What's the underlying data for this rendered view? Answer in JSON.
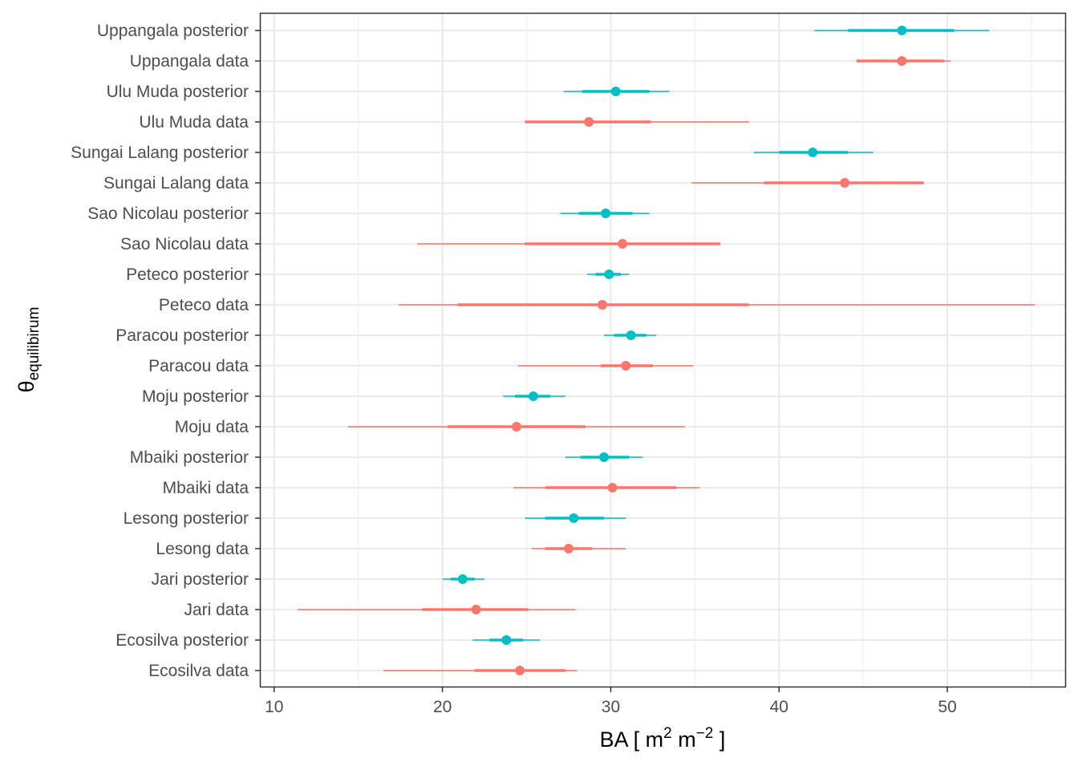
{
  "chart_data": {
    "type": "interval",
    "xlabel": {
      "base": "BA [ m",
      "exp1": "2",
      "mid": " m",
      "exp2": "−2",
      "end": " ]"
    },
    "ylabel": {
      "symbol": "θ",
      "subscript": "equilibirum"
    },
    "xlim": [
      9.2,
      57.0
    ],
    "xticks": [
      10,
      20,
      30,
      40,
      50
    ],
    "grid": true,
    "legend": "none",
    "colors": {
      "posterior": "#00BFC4",
      "data": "#F8766D"
    },
    "rows": [
      {
        "label": "Uppangala posterior",
        "type": "posterior",
        "point": 47.3,
        "inner": [
          44.1,
          50.4
        ],
        "outer": [
          42.1,
          52.5
        ]
      },
      {
        "label": "Uppangala data",
        "type": "data",
        "point": 47.3,
        "inner": [
          44.6,
          49.8
        ],
        "outer": [
          44.6,
          50.2
        ]
      },
      {
        "label": "Ulu Muda posterior",
        "type": "posterior",
        "point": 30.3,
        "inner": [
          28.3,
          32.3
        ],
        "outer": [
          27.2,
          33.5
        ]
      },
      {
        "label": "Ulu Muda data",
        "type": "data",
        "point": 28.7,
        "inner": [
          24.9,
          32.4
        ],
        "outer": [
          24.9,
          38.2
        ]
      },
      {
        "label": "Sungai Lalang posterior",
        "type": "posterior",
        "point": 42.0,
        "inner": [
          40.0,
          44.1
        ],
        "outer": [
          38.5,
          45.6
        ]
      },
      {
        "label": "Sungai Lalang data",
        "type": "data",
        "point": 43.9,
        "inner": [
          39.1,
          48.6
        ],
        "outer": [
          34.8,
          48.6
        ]
      },
      {
        "label": "Sao Nicolau posterior",
        "type": "posterior",
        "point": 29.7,
        "inner": [
          28.1,
          31.3
        ],
        "outer": [
          27.0,
          32.3
        ]
      },
      {
        "label": "Sao Nicolau data",
        "type": "data",
        "point": 30.7,
        "inner": [
          24.9,
          36.5
        ],
        "outer": [
          18.5,
          36.5
        ]
      },
      {
        "label": "Peteco posterior",
        "type": "posterior",
        "point": 29.9,
        "inner": [
          29.1,
          30.6
        ],
        "outer": [
          28.6,
          31.1
        ]
      },
      {
        "label": "Peteco data",
        "type": "data",
        "point": 29.5,
        "inner": [
          20.9,
          38.2
        ],
        "outer": [
          17.4,
          55.2
        ]
      },
      {
        "label": "Paracou posterior",
        "type": "posterior",
        "point": 31.2,
        "inner": [
          30.2,
          32.1
        ],
        "outer": [
          29.6,
          32.7
        ]
      },
      {
        "label": "Paracou data",
        "type": "data",
        "point": 30.9,
        "inner": [
          29.4,
          32.5
        ],
        "outer": [
          24.5,
          34.9
        ]
      },
      {
        "label": "Moju posterior",
        "type": "posterior",
        "point": 25.4,
        "inner": [
          24.3,
          26.4
        ],
        "outer": [
          23.6,
          27.3
        ]
      },
      {
        "label": "Moju data",
        "type": "data",
        "point": 24.4,
        "inner": [
          20.3,
          28.5
        ],
        "outer": [
          14.4,
          34.4
        ]
      },
      {
        "label": "Mbaiki posterior",
        "type": "posterior",
        "point": 29.6,
        "inner": [
          28.2,
          31.1
        ],
        "outer": [
          27.3,
          31.9
        ]
      },
      {
        "label": "Mbaiki data",
        "type": "data",
        "point": 30.1,
        "inner": [
          26.1,
          33.9
        ],
        "outer": [
          24.2,
          35.3
        ]
      },
      {
        "label": "Lesong posterior",
        "type": "posterior",
        "point": 27.8,
        "inner": [
          26.1,
          29.6
        ],
        "outer": [
          24.9,
          30.9
        ]
      },
      {
        "label": "Lesong data",
        "type": "data",
        "point": 27.5,
        "inner": [
          26.1,
          28.9
        ],
        "outer": [
          25.3,
          30.9
        ]
      },
      {
        "label": "Jari posterior",
        "type": "posterior",
        "point": 21.2,
        "inner": [
          20.5,
          21.9
        ],
        "outer": [
          20.0,
          22.5
        ]
      },
      {
        "label": "Jari data",
        "type": "data",
        "point": 22.0,
        "inner": [
          18.8,
          25.1
        ],
        "outer": [
          11.4,
          27.9
        ]
      },
      {
        "label": "Ecosilva posterior",
        "type": "posterior",
        "point": 23.8,
        "inner": [
          22.8,
          24.8
        ],
        "outer": [
          21.8,
          25.8
        ]
      },
      {
        "label": "Ecosilva data",
        "type": "data",
        "point": 24.6,
        "inner": [
          21.9,
          27.3
        ],
        "outer": [
          16.5,
          28.0
        ]
      }
    ]
  }
}
